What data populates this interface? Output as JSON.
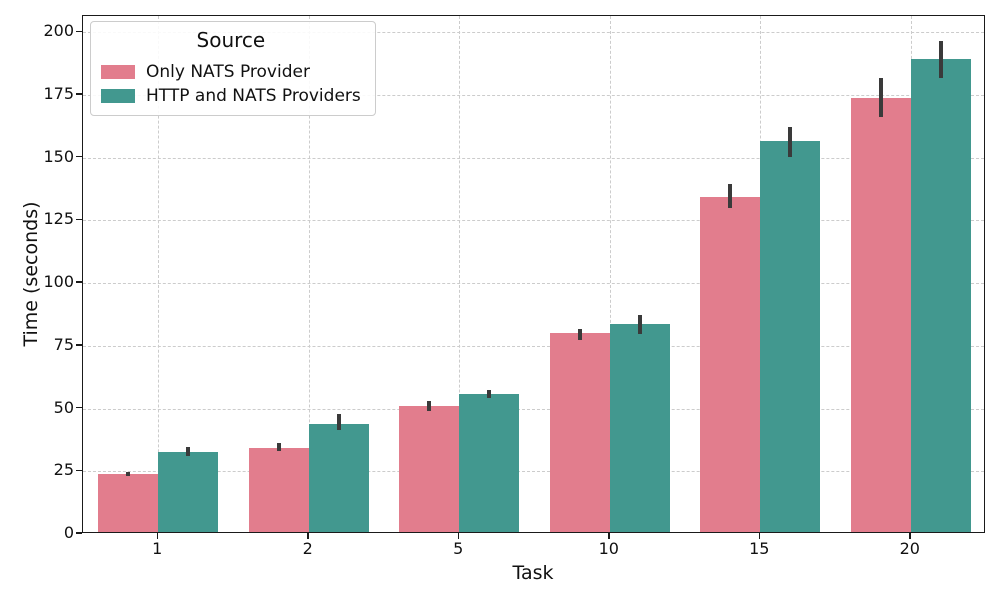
{
  "chart_data": {
    "type": "bar",
    "title": "",
    "xlabel": "Task",
    "ylabel": "Time (seconds)",
    "categories": [
      "1",
      "2",
      "5",
      "10",
      "15",
      "20"
    ],
    "series": [
      {
        "name": "Only NATS Provider",
        "color": "#e27d8d",
        "values": [
          23.8,
          34.4,
          51.2,
          80.0,
          134.5,
          174.0
        ],
        "err_low": [
          23.0,
          33.0,
          49.2,
          77.5,
          130.0,
          166.3
        ],
        "err_high": [
          24.9,
          36.3,
          53.2,
          81.8,
          139.5,
          181.8
        ]
      },
      {
        "name": "HTTP and NATS Providers",
        "color": "#42988f",
        "values": [
          32.6,
          44.0,
          56.0,
          83.8,
          156.5,
          189.3
        ],
        "err_low": [
          31.2,
          41.3,
          54.4,
          79.6,
          150.1,
          181.6
        ],
        "err_high": [
          34.5,
          47.8,
          57.4,
          87.3,
          162.2,
          196.4
        ]
      }
    ],
    "ylim": [
      0,
      206.5
    ],
    "yticks": [
      0,
      25,
      50,
      75,
      100,
      125,
      150,
      175,
      200
    ],
    "legend_title": "Source",
    "legend_position": "upper left",
    "grid": true,
    "grid_color": "#cccccc",
    "error_bar_color": "#3a3a3a",
    "spine_color": "#1a1a1a",
    "background_color": "#ffffff"
  }
}
